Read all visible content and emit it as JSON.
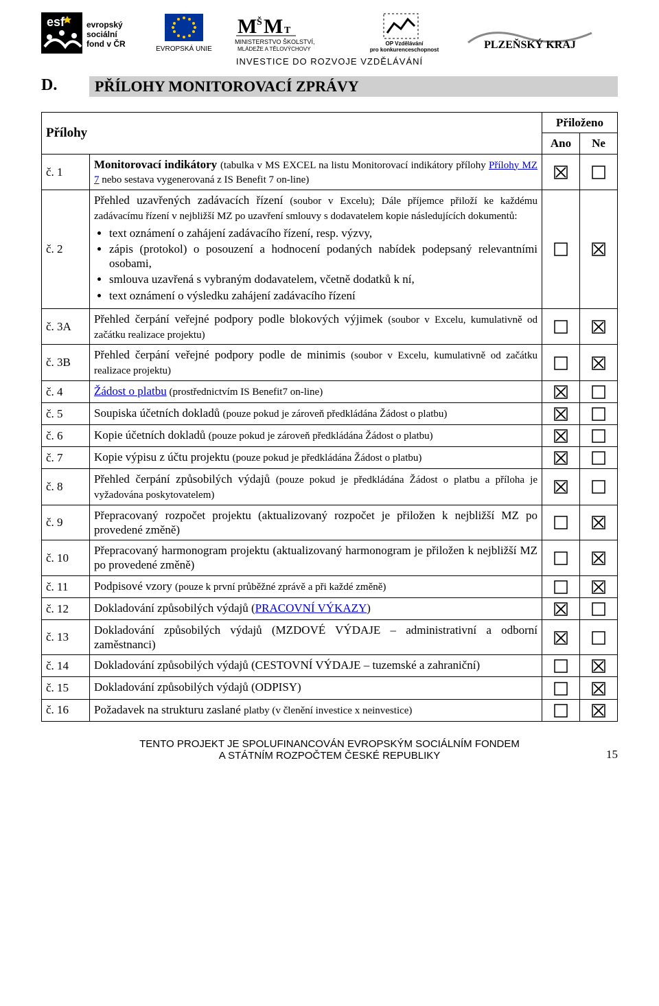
{
  "header": {
    "invest_line": "INVESTICE DO ROZVOJE VZDĚLÁVÁNÍ",
    "logos": {
      "esf_line1": "evropský",
      "esf_line2": "sociální",
      "esf_line3": "fond v ČR",
      "eu": "EVROPSKÁ UNIE",
      "msmt_line1": "MINISTERSTVO ŠKOLSTVÍ,",
      "msmt_line2": "MLÁDEŽE A TĚLOVÝCHOVY",
      "op_line1": "OP Vzdělávání",
      "op_line2": "pro konkurenceschopnost",
      "plzen": "PLZEŇSKÝ KRAJ"
    }
  },
  "section": {
    "letter": "D.",
    "title": "PŘÍLOHY MONITOROVACÍ ZPRÁVY"
  },
  "table_headers": {
    "prilohy": "Přílohy",
    "prilozeno": "Přiloženo",
    "ano": "Ano",
    "ne": "Ne"
  },
  "bullets_row2": [
    "text oznámení o zahájení zadávacího řízení, resp. výzvy,",
    "zápis (protokol) o posouzení a hodnocení podaných nabídek podepsaný relevantními osobami,",
    "smlouva uzavřená s vybraným dodavatelem, včetně dodatků k ní,",
    "text oznámení o výsledku zahájení zadávacího řízení"
  ],
  "rows": [
    {
      "num": "č. 1",
      "desc_main": "Monitorovací indikátory ",
      "desc_tail1": "(tabulka v MS EXCEL na listu Monitorovací indikátory přílohy ",
      "desc_link": "Přílohy MZ 7",
      "desc_tail2": " nebo sestava vygenerovaná z IS Benefit 7 on-line)",
      "ano": true,
      "ne": false
    },
    {
      "num": "č. 2",
      "desc_pre": "Přehled uzavřených zadávacích řízení ",
      "desc_mid": "(soubor v Excelu); Dále příjemce přiloží ke každému zadávacímu řízení v nejbližší MZ po uzavření smlouvy s dodavatelem kopie následujících dokumentů:",
      "ano": false,
      "ne": true
    },
    {
      "num": "č. 3A",
      "desc_main": "Přehled čerpání veřejné podpory podle blokových výjimek ",
      "desc_tail": "(soubor v Excelu, kumulativně od začátku realizace projektu)",
      "ano": false,
      "ne": true
    },
    {
      "num": "č. 3B",
      "desc_main": "Přehled čerpání veřejné podpory podle de minimis ",
      "desc_tail": "(soubor v Excelu, kumulativně od začátku realizace projektu)",
      "ano": false,
      "ne": true
    },
    {
      "num": "č. 4",
      "desc_link": "Žádost o platbu",
      "desc_tail": " (prostřednictvím IS Benefit7 on-line)",
      "ano": true,
      "ne": false
    },
    {
      "num": "č. 5",
      "desc_main": "Soupiska účetních dokladů ",
      "desc_tail": "(pouze pokud je zároveň předkládána Žádost o platbu)",
      "ano": true,
      "ne": false
    },
    {
      "num": "č. 6",
      "desc_main": "Kopie účetních dokladů ",
      "desc_tail": "(pouze pokud je zároveň předkládána Žádost o platbu)",
      "ano": true,
      "ne": false
    },
    {
      "num": "č. 7",
      "desc_main": "Kopie výpisu z účtu projektu ",
      "desc_tail": "(pouze pokud je předkládána Žádost o platbu)",
      "ano": true,
      "ne": false
    },
    {
      "num": "č. 8",
      "desc_main": "Přehled čerpání způsobilých výdajů ",
      "desc_tail": "(pouze pokud je předkládána Žádost o platbu a příloha je vyžadována poskytovatelem)",
      "ano": true,
      "ne": false
    },
    {
      "num": "č. 9",
      "desc_plain": "Přepracovaný rozpočet projektu (aktualizovaný rozpočet je přiložen k nejbližší MZ po provedené změně)",
      "ano": false,
      "ne": true
    },
    {
      "num": "č. 10",
      "desc_plain": "Přepracovaný harmonogram projektu (aktualizovaný harmonogram je přiložen k nejbližší MZ po provedené změně)",
      "ano": false,
      "ne": true
    },
    {
      "num": "č. 11",
      "desc_main": "Podpisové vzory ",
      "desc_tail": "(pouze k první průběžné zprávě a při každé změně)",
      "ano": false,
      "ne": true
    },
    {
      "num": "č. 12",
      "desc_main": "Dokladování způsobilých výdajů (",
      "desc_link": "PRACOVNÍ VÝKAZY",
      "desc_tail": ")",
      "ano": true,
      "ne": false
    },
    {
      "num": "č. 13",
      "desc_plain": "Dokladování způsobilých výdajů (MZDOVÉ VÝDAJE – administrativní a odborní zaměstnanci)",
      "ano": true,
      "ne": false
    },
    {
      "num": "č. 14",
      "desc_plain": "Dokladování způsobilých výdajů (CESTOVNÍ VÝDAJE – tuzemské a zahraniční)",
      "ano": false,
      "ne": true
    },
    {
      "num": "č. 15",
      "desc_plain": "Dokladování způsobilých výdajů (ODPISY)",
      "ano": false,
      "ne": true
    },
    {
      "num": "č. 16",
      "desc_main": "Požadavek na strukturu zaslané ",
      "desc_tail": "platby (v členění investice x neinvestice)",
      "ano": false,
      "ne": true
    }
  ],
  "footer": {
    "line1": "TENTO PROJEKT JE SPOLUFINANCOVÁN EVROPSKÝM SOCIÁLNÍM FONDEM",
    "line2": "A STÁTNÍM ROZPOČTEM ČESKÉ REPUBLIKY",
    "page": "15"
  },
  "colors": {
    "section_bg": "#cfcfcf",
    "link": "#0000cc",
    "text": "#000000",
    "black": "#000000"
  }
}
